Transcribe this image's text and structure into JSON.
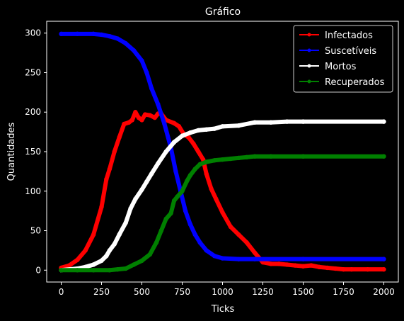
{
  "chart_data": {
    "type": "line",
    "title": "Gráfico",
    "xlabel": "Ticks",
    "ylabel": "Quantidades",
    "xlim": [
      -90,
      2090
    ],
    "ylim": [
      -15,
      315
    ],
    "xticks": [
      0,
      250,
      500,
      750,
      1000,
      1250,
      1500,
      1750,
      2000
    ],
    "yticks": [
      0,
      50,
      100,
      150,
      200,
      250,
      300
    ],
    "grid": false,
    "legend_position": "top-right",
    "series": [
      {
        "name": "Infectados",
        "color": "#ff0000",
        "points": [
          [
            0,
            3
          ],
          [
            50,
            6
          ],
          [
            100,
            13
          ],
          [
            150,
            25
          ],
          [
            200,
            45
          ],
          [
            250,
            80
          ],
          [
            280,
            115
          ],
          [
            300,
            128
          ],
          [
            330,
            150
          ],
          [
            360,
            168
          ],
          [
            390,
            185
          ],
          [
            420,
            187
          ],
          [
            440,
            190
          ],
          [
            460,
            200
          ],
          [
            480,
            193
          ],
          [
            500,
            190
          ],
          [
            520,
            197
          ],
          [
            550,
            196
          ],
          [
            580,
            193
          ],
          [
            600,
            198
          ],
          [
            620,
            198
          ],
          [
            650,
            190
          ],
          [
            700,
            186
          ],
          [
            730,
            182
          ],
          [
            760,
            172
          ],
          [
            790,
            168
          ],
          [
            820,
            160
          ],
          [
            850,
            150
          ],
          [
            880,
            140
          ],
          [
            900,
            122
          ],
          [
            930,
            103
          ],
          [
            960,
            90
          ],
          [
            1000,
            73
          ],
          [
            1050,
            55
          ],
          [
            1100,
            45
          ],
          [
            1150,
            35
          ],
          [
            1200,
            22
          ],
          [
            1250,
            10
          ],
          [
            1300,
            8
          ],
          [
            1350,
            8
          ],
          [
            1400,
            7
          ],
          [
            1450,
            6
          ],
          [
            1500,
            5
          ],
          [
            1550,
            6
          ],
          [
            1600,
            4
          ],
          [
            1650,
            3
          ],
          [
            1700,
            2
          ],
          [
            1750,
            1
          ],
          [
            1800,
            1
          ],
          [
            1900,
            1
          ],
          [
            2000,
            1
          ]
        ]
      },
      {
        "name": "Suscetíveis",
        "color": "#0000ff",
        "points": [
          [
            0,
            299
          ],
          [
            100,
            299
          ],
          [
            200,
            299
          ],
          [
            250,
            298
          ],
          [
            300,
            296
          ],
          [
            350,
            293
          ],
          [
            400,
            287
          ],
          [
            450,
            278
          ],
          [
            500,
            265
          ],
          [
            530,
            250
          ],
          [
            560,
            230
          ],
          [
            600,
            210
          ],
          [
            640,
            185
          ],
          [
            680,
            155
          ],
          [
            710,
            125
          ],
          [
            740,
            100
          ],
          [
            770,
            75
          ],
          [
            800,
            58
          ],
          [
            830,
            45
          ],
          [
            860,
            35
          ],
          [
            900,
            25
          ],
          [
            950,
            18
          ],
          [
            1000,
            15
          ],
          [
            1100,
            14
          ],
          [
            1200,
            14
          ],
          [
            1500,
            14
          ],
          [
            2000,
            14
          ]
        ]
      },
      {
        "name": "Mortos",
        "color": "#ffffff",
        "points": [
          [
            0,
            0
          ],
          [
            100,
            2
          ],
          [
            150,
            4
          ],
          [
            200,
            7
          ],
          [
            250,
            12
          ],
          [
            280,
            18
          ],
          [
            300,
            25
          ],
          [
            330,
            33
          ],
          [
            360,
            45
          ],
          [
            400,
            60
          ],
          [
            430,
            78
          ],
          [
            460,
            90
          ],
          [
            500,
            102
          ],
          [
            530,
            112
          ],
          [
            560,
            122
          ],
          [
            600,
            135
          ],
          [
            650,
            150
          ],
          [
            700,
            162
          ],
          [
            750,
            170
          ],
          [
            800,
            174
          ],
          [
            850,
            177
          ],
          [
            900,
            178
          ],
          [
            950,
            179
          ],
          [
            1000,
            182
          ],
          [
            1100,
            183
          ],
          [
            1200,
            187
          ],
          [
            1300,
            187
          ],
          [
            1400,
            188
          ],
          [
            1500,
            188
          ],
          [
            2000,
            188
          ]
        ]
      },
      {
        "name": "Recuperados",
        "color": "#008000",
        "points": [
          [
            0,
            0
          ],
          [
            100,
            0
          ],
          [
            200,
            0
          ],
          [
            300,
            0
          ],
          [
            350,
            1
          ],
          [
            400,
            2
          ],
          [
            450,
            7
          ],
          [
            500,
            12
          ],
          [
            550,
            20
          ],
          [
            590,
            35
          ],
          [
            620,
            50
          ],
          [
            650,
            65
          ],
          [
            680,
            72
          ],
          [
            700,
            88
          ],
          [
            720,
            93
          ],
          [
            750,
            100
          ],
          [
            780,
            113
          ],
          [
            800,
            120
          ],
          [
            830,
            128
          ],
          [
            860,
            134
          ],
          [
            900,
            137
          ],
          [
            950,
            139
          ],
          [
            1000,
            140
          ],
          [
            1050,
            141
          ],
          [
            1100,
            142
          ],
          [
            1150,
            143
          ],
          [
            1200,
            144
          ],
          [
            1300,
            144
          ],
          [
            1500,
            144
          ],
          [
            2000,
            144
          ]
        ]
      }
    ]
  }
}
